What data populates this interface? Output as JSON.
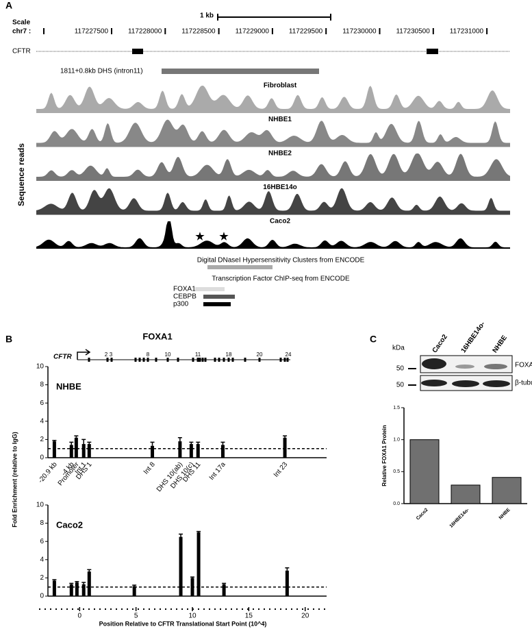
{
  "panel_labels": [
    "A",
    "B",
    "C"
  ],
  "genome": {
    "scale": "Scale",
    "chrom": "chr7 :",
    "scale_bar": "1 kb",
    "coordinates": [
      "117227500",
      "117228000",
      "117228500",
      "117229000",
      "117229500",
      "117230000",
      "117230500",
      "117231000"
    ],
    "gene": "CFTR",
    "dhs_label": "1811+0.8kb DHS (intron11)",
    "y_label": "Sequence reads",
    "tracks": [
      {
        "name": "Fibroblast",
        "color": "#aaaaaa"
      },
      {
        "name": "NHBE1",
        "color": "#888888"
      },
      {
        "name": "NHBE2",
        "color": "#777777"
      },
      {
        "name": "16HBE14o",
        "color": "#444444"
      },
      {
        "name": "Caco2",
        "color": "#000000"
      }
    ],
    "dnase_title": "Digital DNaseI Hypersensitivity Clusters from ENCODE",
    "chip_title": "Transcription Factor ChIP-seq from ENCODE",
    "chip": [
      {
        "name": "FOXA1",
        "color": "#dddddd"
      },
      {
        "name": "CEBPB",
        "color": "#555555"
      },
      {
        "name": "p300",
        "color": "#000000"
      }
    ]
  },
  "panel_b": {
    "title": "FOXA1",
    "gene": "CFTR",
    "exons": [
      "2",
      "3",
      "8",
      "10",
      "11",
      "18",
      "20",
      "24"
    ],
    "y_label": "Fold Enrichment (relative to IgG)"
  },
  "western": {
    "kda": "kDa",
    "lanes": [
      "Caco2",
      "16HBE14o-",
      "NHBE"
    ],
    "bands": [
      {
        "name": "FOXA1",
        "marker": "50"
      },
      {
        "name": "β-tubulin",
        "marker": "50"
      }
    ]
  },
  "chart_data": [
    {
      "type": "bar",
      "title": "NHBE",
      "color": "#000000",
      "categories": [
        "-20.9 kb",
        "-4 kb",
        "Promoter",
        "Int 1",
        "DHS 1",
        "Int 8",
        "DHS 10(ab)",
        "DHS 10(c)",
        "DHS 11",
        "Int 17a",
        "Int 23"
      ],
      "x": [
        -2.24,
        -0.73,
        -0.3,
        0.36,
        0.85,
        6.45,
        8.9,
        9.9,
        10.5,
        12.7,
        18.2
      ],
      "values": [
        1.8,
        1.4,
        2.2,
        1.5,
        1.5,
        1.3,
        1.8,
        1.5,
        1.5,
        1.4,
        2.2
      ],
      "errors": [
        0.1,
        0.3,
        0.2,
        0.5,
        0.2,
        0.4,
        0.4,
        0.2,
        0.2,
        0.3,
        0.2
      ],
      "xlim": [
        -3.6,
        21.9
      ],
      "ylim": [
        0,
        10
      ],
      "yticks": [
        0,
        2,
        4,
        6,
        8,
        10
      ],
      "reference_line": 1
    },
    {
      "type": "bar",
      "title": "Caco2",
      "color": "#000000",
      "x": [
        -2.24,
        -0.73,
        -0.24,
        0.36,
        0.85,
        4.85,
        8.97,
        10.0,
        10.55,
        12.8,
        18.4
      ],
      "values": [
        1.7,
        1.3,
        1.5,
        1.3,
        2.7,
        1.1,
        6.5,
        2.0,
        7.0,
        1.3,
        2.8
      ],
      "errors": [
        0.1,
        0.1,
        0.1,
        0.2,
        0.2,
        0.1,
        0.3,
        0.1,
        0.1,
        0.1,
        0.3
      ],
      "xlim": [
        -3.6,
        21.9
      ],
      "xticks": [
        0,
        5,
        10,
        15,
        20
      ],
      "ylim": [
        0,
        10
      ],
      "yticks": [
        0,
        2,
        4,
        6,
        8,
        10
      ],
      "reference_line": 1,
      "x_label": "Position Relative to CFTR Translational Start Point (10^4)"
    },
    {
      "type": "bar",
      "color": "#707070",
      "y_label": "Relative FOXA1 Protein",
      "categories": [
        "Caco2",
        "16HBE14o-",
        "NHBE"
      ],
      "values": [
        1.0,
        0.29,
        0.41
      ],
      "ylim": [
        0,
        1.5
      ],
      "yticks": [
        {
          "value": 0,
          "label": "0.0"
        },
        {
          "value": 0.5,
          "label": "0.5"
        },
        {
          "value": 1.0,
          "label": "1.0"
        },
        {
          "value": 1.5,
          "label": "1.5"
        }
      ]
    }
  ]
}
